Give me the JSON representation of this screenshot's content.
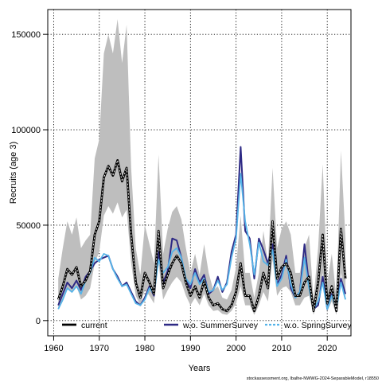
{
  "chart_data": {
    "type": "line",
    "xlabel": "Years",
    "ylabel": "Recruits (age 3)",
    "xlim": [
      1958.7,
      2025.2
    ],
    "ylim": [
      -8000,
      163000
    ],
    "x_ticks": [
      1960,
      1970,
      1980,
      1990,
      2000,
      2010,
      2020
    ],
    "y_ticks": [
      0,
      50000,
      100000,
      150000
    ],
    "grid": true,
    "legend_position": "bottom",
    "credit": "stockassessment.org, Ibalhe-NWWG-2024-SeparableModel, r18550",
    "x": [
      1961,
      1962,
      1963,
      1964,
      1965,
      1966,
      1967,
      1968,
      1969,
      1970,
      1971,
      1972,
      1973,
      1974,
      1975,
      1976,
      1977,
      1978,
      1979,
      1980,
      1981,
      1982,
      1983,
      1984,
      1985,
      1986,
      1987,
      1988,
      1989,
      1990,
      1991,
      1992,
      1993,
      1994,
      1995,
      1996,
      1997,
      1998,
      1999,
      2000,
      2001,
      2002,
      2003,
      2004,
      2005,
      2006,
      2007,
      2008,
      2009,
      2010,
      2011,
      2012,
      2013,
      2014,
      2015,
      2016,
      2017,
      2018,
      2019,
      2020,
      2021,
      2022,
      2023,
      2024
    ],
    "series": [
      {
        "name": "current",
        "color": "#000000",
        "style": "solid-with-white-dash",
        "values": [
          11000,
          18000,
          27000,
          24000,
          28000,
          18000,
          21000,
          26000,
          45000,
          52000,
          75000,
          81000,
          76000,
          84000,
          73000,
          80000,
          45000,
          20000,
          12000,
          25000,
          20000,
          14000,
          47000,
          17000,
          24000,
          30000,
          34000,
          30000,
          20000,
          13000,
          18000,
          12000,
          21000,
          12000,
          8000,
          9000,
          6000,
          5000,
          8000,
          15000,
          30000,
          13000,
          13000,
          5000,
          13000,
          25000,
          17000,
          52000,
          22000,
          28000,
          30000,
          25000,
          13000,
          13000,
          20000,
          23000,
          5000,
          20000,
          45000,
          9000,
          18000,
          5000,
          48000,
          22000
        ],
        "lower": [
          6000,
          10000,
          17000,
          15000,
          18000,
          11000,
          13000,
          17000,
          30000,
          36000,
          55000,
          60000,
          56000,
          62000,
          54000,
          58000,
          30000,
          13000,
          8000,
          16000,
          13000,
          9000,
          30000,
          11000,
          16000,
          20000,
          23000,
          20000,
          13000,
          8000,
          12000,
          8000,
          14000,
          8000,
          5000,
          5500,
          3500,
          3000,
          5000,
          9000,
          18000,
          8000,
          8000,
          3000,
          8000,
          15000,
          10000,
          32000,
          13000,
          17000,
          18000,
          15000,
          8000,
          8000,
          12000,
          13000,
          3000,
          11000,
          25000,
          5000,
          10000,
          3000,
          25000,
          12000
        ],
        "upper": [
          22000,
          38000,
          52000,
          45000,
          54000,
          38000,
          42000,
          45000,
          85000,
          95000,
          140000,
          150000,
          140000,
          158000,
          135000,
          155000,
          80000,
          38000,
          24000,
          50000,
          40000,
          30000,
          87000,
          35000,
          48000,
          57000,
          60000,
          53000,
          38000,
          25000,
          35000,
          24000,
          40000,
          25000,
          16000,
          18000,
          12000,
          11000,
          16000,
          28000,
          55000,
          25000,
          25000,
          12000,
          25000,
          47000,
          30000,
          80000,
          38000,
          48000,
          52000,
          45000,
          25000,
          25000,
          38000,
          45000,
          11000,
          38000,
          82000,
          20000,
          35000,
          12000,
          89000,
          43000
        ]
      },
      {
        "name": "w.o. SummerSurvey",
        "color": "#2e2a85",
        "style": "solid",
        "values": [
          8000,
          14000,
          20000,
          17000,
          21000,
          16000,
          23000,
          26000,
          30000,
          32000,
          33000,
          34000,
          27000,
          23000,
          18000,
          20000,
          15000,
          10000,
          8000,
          12000,
          18000,
          13000,
          36000,
          20000,
          26000,
          43000,
          42000,
          33000,
          21000,
          17000,
          27000,
          20000,
          24000,
          14000,
          16000,
          23000,
          15000,
          20000,
          36000,
          45000,
          91000,
          47000,
          43000,
          22000,
          43000,
          37000,
          30000,
          40000,
          19000,
          24000,
          34000,
          17000,
          12000,
          15000,
          40000,
          19000,
          6000,
          8000,
          23000,
          6000,
          14000,
          7000,
          22000,
          14000
        ]
      },
      {
        "name": "w.o. SpringSurvey",
        "color": "#56b4e9",
        "style": "dashed",
        "values": [
          6000,
          11000,
          17000,
          15000,
          18000,
          14000,
          21000,
          25000,
          33000,
          31000,
          35000,
          34000,
          27000,
          22000,
          18000,
          19000,
          14000,
          9000,
          8000,
          11000,
          17000,
          14000,
          32000,
          25000,
          28000,
          36000,
          38000,
          33000,
          22000,
          19000,
          25000,
          19000,
          22000,
          15000,
          16000,
          21000,
          16000,
          19000,
          33000,
          43000,
          77000,
          52000,
          40000,
          24000,
          41000,
          31000,
          29000,
          37000,
          18000,
          22000,
          32000,
          19000,
          12000,
          15000,
          33000,
          17000,
          6000,
          10000,
          20000,
          6000,
          13000,
          6000,
          20000,
          11000
        ]
      }
    ]
  }
}
